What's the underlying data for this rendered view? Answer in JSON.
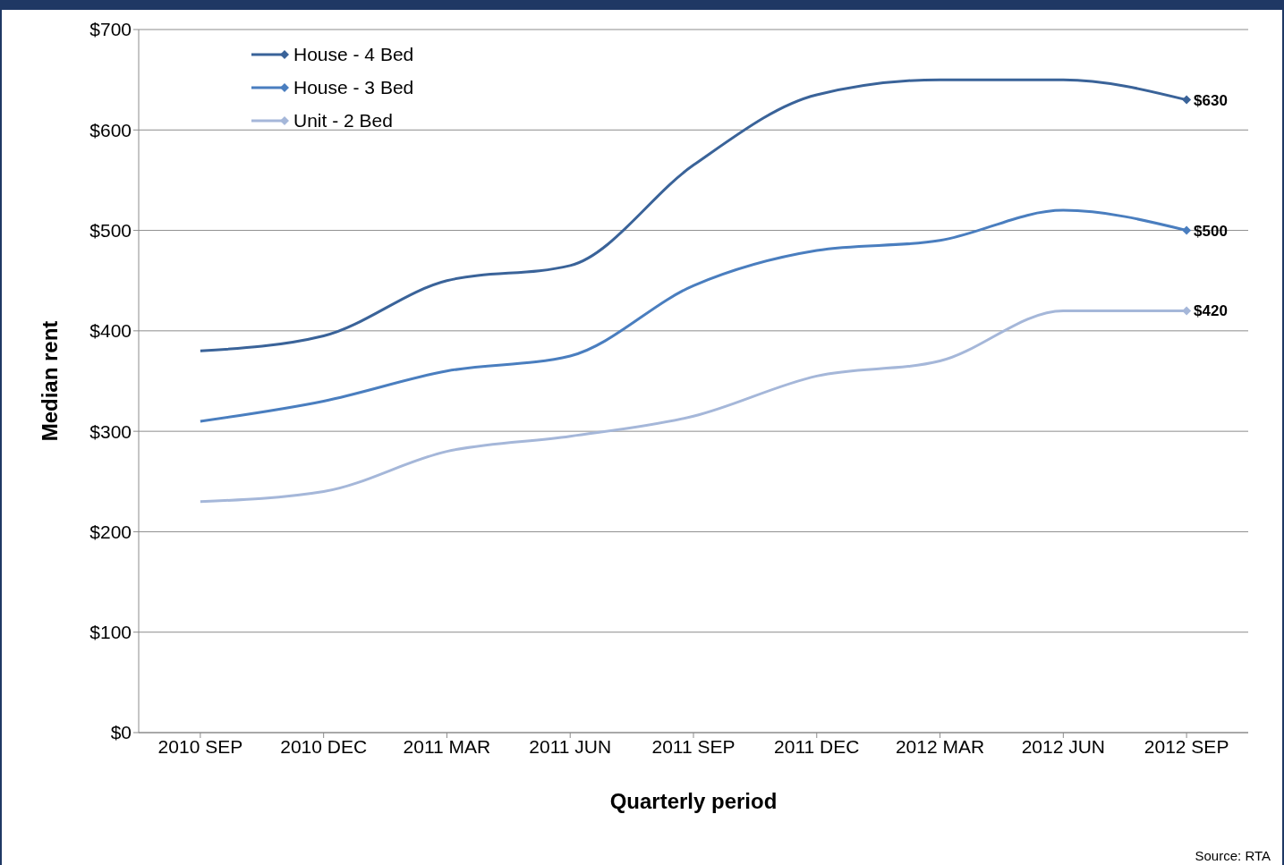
{
  "chart_data": {
    "type": "line",
    "xlabel": "Quarterly period",
    "ylabel": "Median rent",
    "categories": [
      "2010 SEP",
      "2010 DEC",
      "2011 MAR",
      "2011 JUN",
      "2011 SEP",
      "2011 DEC",
      "2012 MAR",
      "2012 JUN",
      "2012 SEP"
    ],
    "series": [
      {
        "name": "House - 4 Bed",
        "color": "#3a6399",
        "values": [
          380,
          395,
          450,
          465,
          565,
          635,
          650,
          650,
          630
        ],
        "value_labels": [
          null,
          null,
          null,
          null,
          null,
          null,
          null,
          null,
          "$630"
        ]
      },
      {
        "name": "House - 3 Bed",
        "color": "#4a7ebf",
        "values": [
          310,
          330,
          360,
          375,
          445,
          480,
          490,
          520,
          500
        ],
        "value_labels": [
          null,
          null,
          null,
          null,
          null,
          null,
          null,
          null,
          "$500"
        ]
      },
      {
        "name": "Unit - 2 Bed",
        "color": "#a5b7d9",
        "values": [
          230,
          240,
          280,
          295,
          315,
          355,
          370,
          420,
          420
        ],
        "value_labels": [
          null,
          null,
          null,
          null,
          null,
          null,
          null,
          null,
          "$420"
        ]
      }
    ],
    "ylim": [
      0,
      700
    ],
    "yticks": [
      {
        "value": 0,
        "label": "$0"
      },
      {
        "value": 100,
        "label": "$100"
      },
      {
        "value": 200,
        "label": "$200"
      },
      {
        "value": 300,
        "label": "$300"
      },
      {
        "value": 400,
        "label": "$400"
      },
      {
        "value": 500,
        "label": "$500"
      },
      {
        "value": 600,
        "label": "$600"
      },
      {
        "value": 700,
        "label": "$700"
      }
    ],
    "grid": "y",
    "legend": "top left",
    "line_style": "solid",
    "annotations": [
      "Source: RTA"
    ]
  }
}
